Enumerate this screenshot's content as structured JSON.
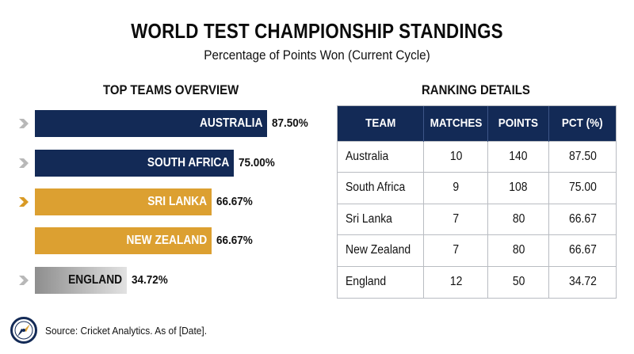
{
  "title": "WORLD TEST CHAMPIONSHIP STANDINGS",
  "subtitle": "Percentage of Points Won (Current Cycle)",
  "left_heading": "TOP TEAMS OVERVIEW",
  "right_heading": "RANKING DETAILS",
  "colors": {
    "navy": "#132a56",
    "gold": "#dca031",
    "grey_start": "#8e8e8e",
    "grey_end": "#e2e2e2",
    "marker_grey": "#b8b8b8",
    "marker_gold": "#d99a25"
  },
  "chart_data": {
    "type": "bar",
    "orientation": "horizontal",
    "categories": [
      "AUSTRALIA",
      "SOUTH AFRICA",
      "SRI LANKA",
      "NEW ZEALAND",
      "ENGLAND"
    ],
    "values": [
      87.5,
      75.0,
      66.67,
      66.67,
      34.72
    ],
    "value_labels": [
      "87.50%",
      "75.00%",
      "66.67%",
      "66.67%",
      "34.72%"
    ],
    "bar_colors": [
      "navy",
      "navy",
      "gold",
      "gold",
      "grey"
    ],
    "markers": [
      "grey",
      "grey",
      "gold",
      "none",
      "grey"
    ],
    "title": "TOP TEAMS OVERVIEW",
    "xlim": [
      0,
      100
    ]
  },
  "table": {
    "headers": [
      "TEAM",
      "MATCHES",
      "POINTS",
      "PCT (%)"
    ],
    "rows": [
      [
        "Australia",
        "10",
        "140",
        "87.50"
      ],
      [
        "South Africa",
        "9",
        "108",
        "75.00"
      ],
      [
        "Sri Lanka",
        "7",
        "80",
        "66.67"
      ],
      [
        "New Zealand",
        "7",
        "80",
        "66.67"
      ],
      [
        "England",
        "12",
        "50",
        "34.72"
      ]
    ]
  },
  "footer": {
    "icon": "compass-icon",
    "text": "Source: Cricket Analytics. As of [Date]."
  }
}
